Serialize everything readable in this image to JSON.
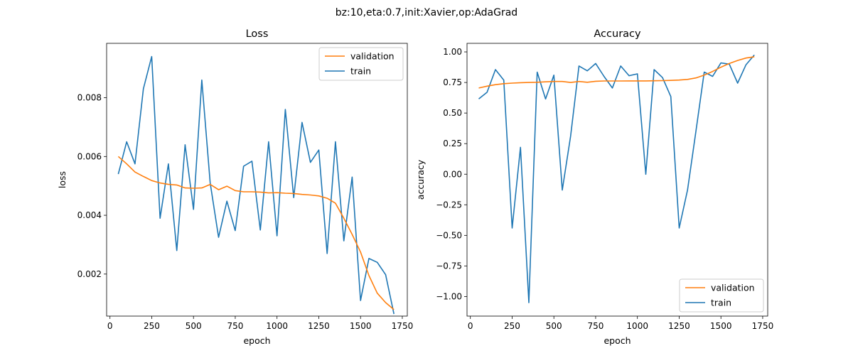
{
  "figure": {
    "suptitle": "bz:10,eta:0.7,init:Xavier,op:AdaGrad"
  },
  "chart_data": [
    {
      "type": "line",
      "title": "Loss",
      "xlabel": "epoch",
      "ylabel": "loss",
      "xlim": [
        -20,
        1780
      ],
      "ylim": [
        0.00057,
        0.00985
      ],
      "xticks": [
        0,
        250,
        500,
        750,
        1000,
        1250,
        1500,
        1750
      ],
      "xtick_labels": [
        "0",
        "250",
        "500",
        "750",
        "1000",
        "1250",
        "1500",
        "1750"
      ],
      "yticks": [
        0.002,
        0.004,
        0.006,
        0.008
      ],
      "ytick_labels": [
        "0.002",
        "0.004",
        "0.006",
        "0.008"
      ],
      "grid": false,
      "legend": "top-right",
      "x": [
        50,
        100,
        150,
        200,
        250,
        300,
        350,
        400,
        450,
        500,
        550,
        600,
        650,
        700,
        750,
        800,
        850,
        900,
        950,
        1000,
        1050,
        1100,
        1150,
        1200,
        1250,
        1300,
        1350,
        1400,
        1450,
        1500,
        1550,
        1600,
        1650,
        1700
      ],
      "series": [
        {
          "name": "validation",
          "color": "#ff7f0e",
          "values": [
            0.006,
            0.00575,
            0.00547,
            0.00532,
            0.00518,
            0.0051,
            0.00505,
            0.00503,
            0.00493,
            0.00492,
            0.00493,
            0.00505,
            0.00487,
            0.00499,
            0.00484,
            0.0048,
            0.0048,
            0.00479,
            0.00476,
            0.00477,
            0.00475,
            0.00474,
            0.00471,
            0.00469,
            0.00466,
            0.00458,
            0.00441,
            0.0039,
            0.00335,
            0.00275,
            0.00195,
            0.00135,
            0.00103,
            0.00079
          ]
        },
        {
          "name": "train",
          "color": "#1f77b4",
          "values": [
            0.0054,
            0.0065,
            0.00575,
            0.0083,
            0.0094,
            0.0039,
            0.00575,
            0.0028,
            0.0064,
            0.0042,
            0.0086,
            0.0051,
            0.00325,
            0.00448,
            0.00348,
            0.00567,
            0.00584,
            0.0035,
            0.0065,
            0.0033,
            0.0076,
            0.0046,
            0.00716,
            0.0058,
            0.00622,
            0.0027,
            0.0065,
            0.00313,
            0.0053,
            0.0011,
            0.00253,
            0.0024,
            0.00198,
            0.00064
          ]
        }
      ]
    },
    {
      "type": "line",
      "title": "Accuracy",
      "xlabel": "epoch",
      "ylabel": "accuracy",
      "xlim": [
        -20,
        1780
      ],
      "ylim": [
        -1.16,
        1.07
      ],
      "xticks": [
        0,
        250,
        500,
        750,
        1000,
        1250,
        1500,
        1750
      ],
      "xtick_labels": [
        "0",
        "250",
        "500",
        "750",
        "1000",
        "1250",
        "1500",
        "1750"
      ],
      "yticks": [
        -1.0,
        -0.75,
        -0.5,
        -0.25,
        0.0,
        0.25,
        0.5,
        0.75,
        1.0
      ],
      "ytick_labels": [
        "−1.00",
        "−0.75",
        "−0.50",
        "−0.25",
        "0.00",
        "0.25",
        "0.50",
        "0.75",
        "1.00"
      ],
      "grid": false,
      "legend": "bottom-right",
      "x": [
        50,
        100,
        150,
        200,
        250,
        300,
        350,
        400,
        450,
        500,
        550,
        600,
        650,
        700,
        750,
        800,
        850,
        900,
        950,
        1000,
        1050,
        1100,
        1150,
        1200,
        1250,
        1300,
        1350,
        1400,
        1450,
        1500,
        1550,
        1600,
        1650,
        1700
      ],
      "series": [
        {
          "name": "validation",
          "color": "#ff7f0e",
          "values": [
            0.705,
            0.72,
            0.732,
            0.74,
            0.745,
            0.748,
            0.75,
            0.752,
            0.755,
            0.758,
            0.758,
            0.75,
            0.758,
            0.752,
            0.76,
            0.762,
            0.762,
            0.762,
            0.763,
            0.763,
            0.763,
            0.764,
            0.765,
            0.767,
            0.77,
            0.775,
            0.787,
            0.81,
            0.84,
            0.875,
            0.905,
            0.93,
            0.95,
            0.96
          ]
        },
        {
          "name": "train",
          "color": "#1f77b4",
          "values": [
            0.615,
            0.67,
            0.855,
            0.77,
            -0.44,
            0.22,
            -1.05,
            0.835,
            0.615,
            0.81,
            -0.13,
            0.31,
            0.885,
            0.845,
            0.905,
            0.8,
            0.705,
            0.885,
            0.805,
            0.82,
            0.0,
            0.855,
            0.79,
            0.635,
            -0.44,
            -0.13,
            0.35,
            0.835,
            0.8,
            0.91,
            0.9,
            0.745,
            0.895,
            0.975
          ]
        }
      ]
    }
  ]
}
